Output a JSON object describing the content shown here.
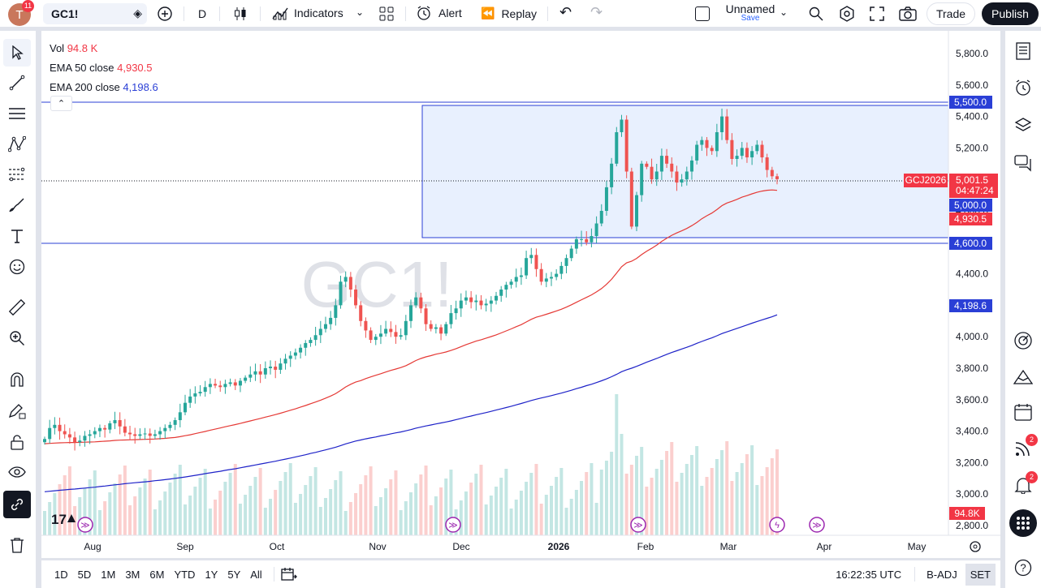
{
  "header": {
    "avatar_letter": "T",
    "notif_count": "11",
    "symbol": "GC1!",
    "interval": "D",
    "indicators_label": "Indicators",
    "alert_label": "Alert",
    "replay_label": "Replay",
    "layout_name": "Unnamed",
    "save_label": "Save",
    "trade_label": "Trade",
    "publish_label": "Publish"
  },
  "legend": {
    "vol_label": "Vol",
    "vol_value": "94.8 K",
    "ema50_label": "EMA 50 close",
    "ema50_value": "4,930.5",
    "ema200_label": "EMA 200 close",
    "ema200_value": "4,198.6"
  },
  "watermark": "GC1!",
  "price_axis": [
    "5,800.0",
    "5,600.0",
    "5,400.0",
    "5,200.0",
    "5,000.0",
    "4,800.0",
    "4,600.0",
    "4,400.0",
    "4,200.0",
    "4,000.0",
    "3,800.0",
    "3,600.0",
    "3,400.0",
    "3,200.0",
    "3,000.0",
    "2,800.0"
  ],
  "time_axis": [
    "Aug",
    "Sep",
    "Oct",
    "Nov",
    "Dec",
    "2026",
    "Feb",
    "Mar",
    "Apr",
    "May"
  ],
  "price_tags": {
    "upper_line": "5,500.0",
    "lower_line": "4,600.0",
    "contract": "GCJ2026",
    "last": "5,001.5",
    "countdown": "04:47:24",
    "level_5000": "5,000.0",
    "ema50": "4,930.5",
    "ema200": "4,198.6",
    "volume": "94.8K"
  },
  "bottom": {
    "ranges": [
      "1D",
      "5D",
      "1M",
      "3M",
      "6M",
      "YTD",
      "1Y",
      "5Y",
      "All"
    ],
    "clock": "16:22:35 UTC",
    "adj": "B-ADJ",
    "session": "SET"
  },
  "right_badges": {
    "ideas": "2",
    "alerts": "2"
  },
  "colors": {
    "up": "#26a69a",
    "down": "#ef5350",
    "ema50": "#e53935",
    "ema200": "#1e22c8",
    "lines": "#2a3fd6",
    "box": "rgba(33,110,243,0.10)"
  },
  "chart_data": {
    "type": "candlestick",
    "ylim": [
      2750,
      5900
    ],
    "months": [
      "Aug",
      "Sep",
      "Oct",
      "Nov",
      "Dec",
      "2026",
      "Feb",
      "Mar",
      "Apr",
      "May"
    ],
    "horizontal_levels": [
      5500,
      4600,
      5001.5
    ],
    "box": {
      "from_price": 4650,
      "to_price": 5480
    },
    "closes": [
      3350,
      3420,
      3440,
      3400,
      3380,
      3360,
      3330,
      3340,
      3370,
      3380,
      3400,
      3420,
      3410,
      3450,
      3470,
      3430,
      3390,
      3380,
      3370,
      3380,
      3385,
      3370,
      3380,
      3400,
      3420,
      3440,
      3470,
      3520,
      3580,
      3620,
      3640,
      3650,
      3680,
      3700,
      3690,
      3680,
      3700,
      3710,
      3690,
      3720,
      3740,
      3760,
      3780,
      3760,
      3800,
      3810,
      3790,
      3830,
      3860,
      3880,
      3900,
      3930,
      3960,
      3980,
      4010,
      4050,
      4080,
      4120,
      4200,
      4350,
      4380,
      4300,
      4200,
      4100,
      4040,
      3980,
      4000,
      4020,
      4050,
      4030,
      4000,
      4010,
      4100,
      4200,
      4250,
      4180,
      4080,
      4050,
      4060,
      4020,
      4080,
      4150,
      4180,
      4230,
      4250,
      4220,
      4230,
      4200,
      4210,
      4230,
      4260,
      4300,
      4330,
      4350,
      4380,
      4390,
      4500,
      4520,
      4430,
      4350,
      4370,
      4380,
      4400,
      4450,
      4500,
      4560,
      4620,
      4620,
      4600,
      4640,
      4720,
      4800,
      4950,
      5100,
      5300,
      5380,
      5050,
      4700,
      4900,
      5100,
      5080,
      5000,
      5050,
      5150,
      5100,
      5050,
      4980,
      5000,
      5050,
      5120,
      5220,
      5250,
      5200,
      5180,
      5300,
      5400,
      5250,
      5130,
      5150,
      5200,
      5140,
      5180,
      5220,
      5140,
      5060,
      5020,
      5001.5
    ],
    "ema50": [
      3320,
      3322,
      3324,
      3326,
      3327,
      3328,
      3328,
      3329,
      3330,
      3331,
      3332,
      3334,
      3336,
      3338,
      3341,
      3343,
      3344,
      3345,
      3346,
      3347,
      3348,
      3349,
      3350,
      3352,
      3354,
      3357,
      3360,
      3365,
      3371,
      3377,
      3384,
      3391,
      3398,
      3406,
      3413,
      3420,
      3428,
      3435,
      3442,
      3449,
      3457,
      3465,
      3473,
      3481,
      3489,
      3497,
      3505,
      3514,
      3523,
      3533,
      3542,
      3553,
      3563,
      3574,
      3585,
      3597,
      3610,
      3623,
      3638,
      3659,
      3681,
      3698,
      3712,
      3721,
      3734,
      3745,
      3755,
      3765,
      3776,
      3786,
      3795,
      3804,
      3816,
      3832,
      3849,
      3862,
      3872,
      3880,
      3889,
      3896,
      3903,
      3913,
      3924,
      3937,
      3950,
      3961,
      3972,
      3981,
      3991,
      4001,
      4012,
      4024,
      4037,
      4050,
      4064,
      4077,
      4094,
      4111,
      4124,
      4133,
      4143,
      4153,
      4164,
      4175,
      4188,
      4203,
      4219,
      4235,
      4250,
      4266,
      4285,
      4306,
      4333,
      4365,
      4404,
      4445,
      4470,
      4480,
      4498,
      4522,
      4544,
      4562,
      4582,
      4606,
      4626,
      4645,
      4660,
      4673,
      4688,
      4706,
      4727,
      4750,
      4769,
      4786,
      4808,
      4833,
      4850,
      4861,
      4873,
      4887,
      4897,
      4908,
      4918,
      4926,
      4931,
      4933,
      4930.5
    ],
    "ema200": [
      3015,
      3018,
      3021,
      3024,
      3027,
      3030,
      3032,
      3035,
      3038,
      3041,
      3044,
      3048,
      3051,
      3055,
      3059,
      3062,
      3066,
      3069,
      3072,
      3075,
      3078,
      3081,
      3085,
      3088,
      3092,
      3096,
      3100,
      3104,
      3109,
      3114,
      3119,
      3124,
      3130,
      3135,
      3140,
      3145,
      3151,
      3156,
      3161,
      3167,
      3173,
      3179,
      3185,
      3191,
      3197,
      3203,
      3209,
      3216,
      3222,
      3229,
      3236,
      3243,
      3250,
      3258,
      3265,
      3273,
      3281,
      3289,
      3298,
      3308,
      3319,
      3328,
      3337,
      3344,
      3351,
      3357,
      3363,
      3370,
      3376,
      3383,
      3389,
      3395,
      3402,
      3410,
      3419,
      3426,
      3433,
      3439,
      3446,
      3452,
      3458,
      3465,
      3473,
      3481,
      3489,
      3496,
      3504,
      3511,
      3518,
      3526,
      3534,
      3542,
      3550,
      3558,
      3567,
      3576,
      3585,
      3595,
      3603,
      3611,
      3618,
      3626,
      3634,
      3642,
      3651,
      3660,
      3670,
      3679,
      3689,
      3698,
      3709,
      3720,
      3732,
      3746,
      3761,
      3778,
      3790,
      3800,
      3812,
      3825,
      3838,
      3850,
      3862,
      3875,
      3888,
      3900,
      3911,
      3922,
      3933,
      3945,
      3958,
      3970,
      3982,
      3993,
      4006,
      4020,
      4031,
      4042,
      4053,
      4064,
      4075,
      4086,
      4097,
      4107,
      4117,
      4127,
      4198.6
    ],
    "volume_last": "94.8K"
  }
}
